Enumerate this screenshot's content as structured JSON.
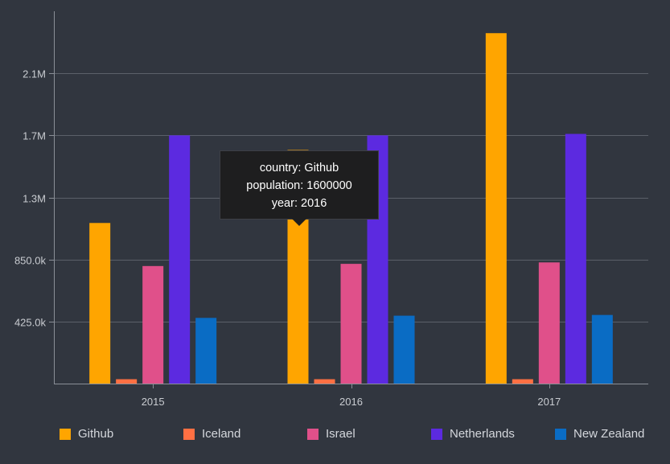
{
  "chart_data": {
    "type": "bar",
    "categories": [
      "2015",
      "2016",
      "2017"
    ],
    "series": [
      {
        "name": "Github",
        "color": "#ffa500",
        "values": [
          1100000,
          1600000,
          2400000
        ]
      },
      {
        "name": "Iceland",
        "color": "#ff7043",
        "values": [
          30000,
          30000,
          30000
        ]
      },
      {
        "name": "Israel",
        "color": "#e0508a",
        "values": [
          805000,
          820000,
          830000
        ]
      },
      {
        "name": "Netherlands",
        "color": "#5c2ae0",
        "values": [
          1700000,
          1700000,
          1710000
        ]
      },
      {
        "name": "New Zealand",
        "color": "#0a6cc4",
        "values": [
          450000,
          465000,
          470000
        ]
      }
    ],
    "yticks": [
      {
        "value": 425000,
        "label": "425.0k"
      },
      {
        "value": 850000,
        "label": "850.0k"
      },
      {
        "value": 1275000,
        "label": "1.3M"
      },
      {
        "value": 1700000,
        "label": "1.7M"
      },
      {
        "value": 2125000,
        "label": "2.1M"
      }
    ],
    "ylim": [
      0,
      2550000
    ],
    "grid": true,
    "legend_position": "bottom",
    "title": "",
    "xlabel": "",
    "ylabel": ""
  },
  "tooltip": {
    "line1": "country: Github",
    "line2": "population: 1600000",
    "line3": "year: 2016"
  }
}
